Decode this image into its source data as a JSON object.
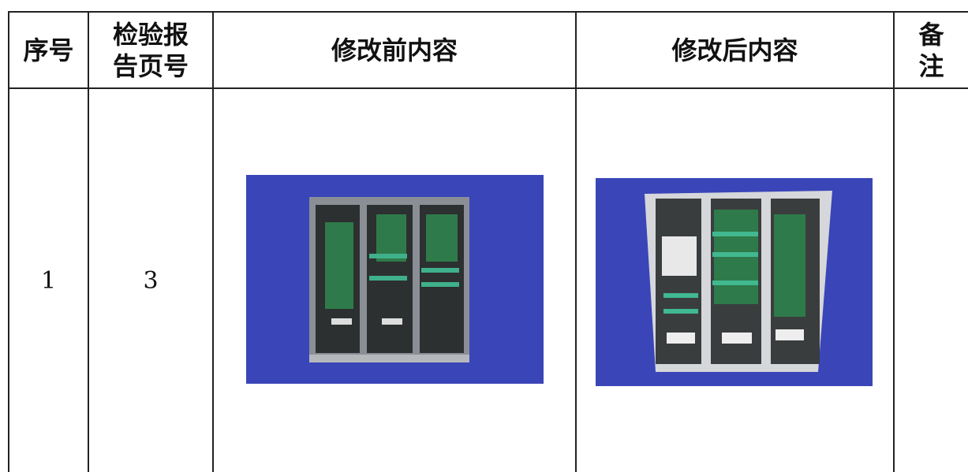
{
  "table": {
    "headers": [
      "序号",
      "检验报告页号",
      "修改前内容",
      "修改后内容",
      "备注"
    ],
    "rows": [
      [
        "1",
        "3"
      ]
    ]
  }
}
